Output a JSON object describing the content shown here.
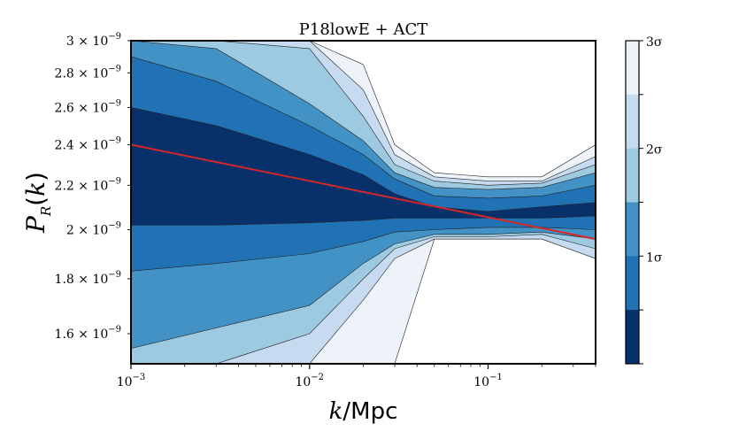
{
  "chart_data": {
    "type": "heatmap",
    "title": "P18lowE + ACT",
    "xlabel": "k/Mpc",
    "ylabel": "P_R(k)",
    "xscale": "log",
    "yscale": "log",
    "xlim": [
      0.001,
      0.4
    ],
    "ylim": [
      1.5e-09,
      3e-09
    ],
    "x_ticks": [
      {
        "value": 0.001,
        "mantissa": "10",
        "exp": "−3"
      },
      {
        "value": 0.01,
        "mantissa": "10",
        "exp": "−2"
      },
      {
        "value": 0.1,
        "mantissa": "10",
        "exp": "−1"
      }
    ],
    "y_ticks": [
      {
        "value": 1.6e-09,
        "mantissa": "1.6 × 10",
        "exp": "−9"
      },
      {
        "value": 1.8e-09,
        "mantissa": "1.8 × 10",
        "exp": "−9"
      },
      {
        "value": 2e-09,
        "mantissa": "2 × 10",
        "exp": "−9"
      },
      {
        "value": 2.2e-09,
        "mantissa": "2.2 × 10",
        "exp": "−9"
      },
      {
        "value": 2.4e-09,
        "mantissa": "2.4 × 10",
        "exp": "−9"
      },
      {
        "value": 2.6e-09,
        "mantissa": "2.6 × 10",
        "exp": "−9"
      },
      {
        "value": 2.8e-09,
        "mantissa": "2.8 × 10",
        "exp": "−9"
      },
      {
        "value": 3e-09,
        "mantissa": "3 × 10",
        "exp": "−9"
      }
    ],
    "band_colors": [
      "#08306b",
      "#2171b5",
      "#4292c6",
      "#9ecae1",
      "#c6dbef",
      "#eef3fa"
    ],
    "bands": [
      {
        "x": [
          0.001,
          0.003,
          0.01,
          0.02,
          0.03,
          0.05,
          0.1,
          0.2,
          0.4
        ],
        "upper": [
          3e-09,
          3e-09,
          3e-09,
          2.85e-09,
          2.4e-09,
          2.26e-09,
          2.24e-09,
          2.24e-09,
          2.4e-09
        ],
        "lower": [
          1.5e-09,
          1.5e-09,
          1.5e-09,
          1.5e-09,
          1.5e-09,
          1.96e-09,
          1.96e-09,
          1.96e-09,
          1.88e-09
        ]
      },
      {
        "x": [
          0.001,
          0.003,
          0.01,
          0.02,
          0.03,
          0.05,
          0.1,
          0.2,
          0.4
        ],
        "upper": [
          3e-09,
          3e-09,
          3e-09,
          2.7e-09,
          2.35e-09,
          2.24e-09,
          2.22e-09,
          2.22e-09,
          2.34e-09
        ],
        "lower": [
          1.5e-09,
          1.5e-09,
          1.5e-09,
          1.72e-09,
          1.88e-09,
          1.96e-09,
          1.96e-09,
          1.96e-09,
          1.88e-09
        ]
      },
      {
        "x": [
          0.001,
          0.003,
          0.01,
          0.02,
          0.03,
          0.05,
          0.1,
          0.2,
          0.4
        ],
        "upper": [
          3e-09,
          3e-09,
          2.95e-09,
          2.55e-09,
          2.3e-09,
          2.22e-09,
          2.2e-09,
          2.21e-09,
          2.3e-09
        ],
        "lower": [
          1.5e-09,
          1.5e-09,
          1.6e-09,
          1.8e-09,
          1.92e-09,
          1.97e-09,
          1.97e-09,
          1.98e-09,
          1.92e-09
        ]
      },
      {
        "x": [
          0.001,
          0.003,
          0.01,
          0.02,
          0.03,
          0.05,
          0.1,
          0.2,
          0.4
        ],
        "upper": [
          3e-09,
          2.95e-09,
          2.62e-09,
          2.42e-09,
          2.26e-09,
          2.19e-09,
          2.18e-09,
          2.19e-09,
          2.26e-09
        ],
        "lower": [
          1.55e-09,
          1.62e-09,
          1.7e-09,
          1.86e-09,
          1.94e-09,
          1.98e-09,
          1.98e-09,
          1.99e-09,
          1.96e-09
        ]
      },
      {
        "x": [
          0.001,
          0.003,
          0.01,
          0.02,
          0.03,
          0.05,
          0.1,
          0.2,
          0.4
        ],
        "upper": [
          2.9e-09,
          2.75e-09,
          2.5e-09,
          2.35e-09,
          2.23e-09,
          2.15e-09,
          2.14e-09,
          2.15e-09,
          2.2e-09
        ],
        "lower": [
          1.83e-09,
          1.86e-09,
          1.9e-09,
          1.95e-09,
          1.99e-09,
          2e-09,
          2.01e-09,
          2.01e-09,
          2e-09
        ]
      },
      {
        "x": [
          0.001,
          0.003,
          0.01,
          0.02,
          0.03,
          0.05,
          0.1,
          0.2,
          0.4
        ],
        "upper": [
          2.6e-09,
          2.5e-09,
          2.35e-09,
          2.25e-09,
          2.16e-09,
          2.1e-09,
          2.08e-09,
          2.1e-09,
          2.12e-09
        ],
        "lower": [
          2.02e-09,
          2.02e-09,
          2.03e-09,
          2.04e-09,
          2.05e-09,
          2.05e-09,
          2.05e-09,
          2.05e-09,
          2.06e-09
        ]
      }
    ],
    "best_fit_line": {
      "name": "best fit",
      "color": "#d62728",
      "x": [
        0.001,
        0.4
      ],
      "y": [
        2.4e-09,
        1.96e-09
      ]
    },
    "colorbar": {
      "levels": 6,
      "labels": [
        {
          "level": 0,
          "text": "3σ"
        },
        {
          "level": 2,
          "text": "2σ"
        },
        {
          "level": 4,
          "text": "1σ"
        }
      ]
    }
  }
}
